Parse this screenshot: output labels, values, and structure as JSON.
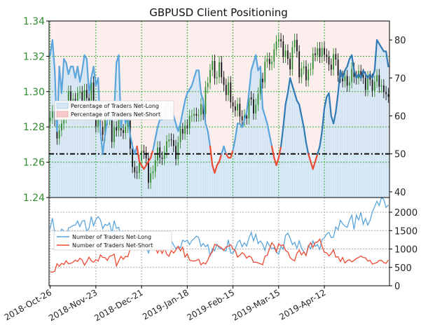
{
  "chart_data": {
    "type": "line",
    "title": "GBPUSD Client Positioning",
    "date_labels": [
      "2018-Oct-26",
      "2018-Nov-23",
      "2018-Dec-21",
      "2019-Jan-18",
      "2019-Feb-15",
      "2019-Mar-15",
      "2019-Apr-12"
    ],
    "price_axis": {
      "ticks": [
        "1.24",
        "1.26",
        "1.28",
        "1.30",
        "1.32",
        "1.34"
      ],
      "ylim": [
        1.24,
        1.34
      ],
      "color": "#2e8b2e"
    },
    "pct_axis": {
      "ticks": [
        "40",
        "50",
        "60",
        "70",
        "80"
      ],
      "ylim": [
        38.5,
        85
      ],
      "threshold": 50
    },
    "count_axis": {
      "ticks": [
        "0",
        "500",
        "1000",
        "1500",
        "2000"
      ],
      "ylim": [
        0,
        2400
      ]
    },
    "legend_top": [
      "Percentage of Traders Net-Long",
      "Percentage of Traders Net-Short"
    ],
    "legend_bottom": [
      "Number of Traders Net-Long",
      "Number of Traders Net-Short"
    ],
    "colors": {
      "long": "#2f7ab5",
      "short": "#ee4b33",
      "long_light": "#5aa5dc",
      "candle_up": "#2e8b2e",
      "candle_down": "#111111",
      "grid": "#3aa83a"
    },
    "pct_long_series": [
      76,
      80,
      72,
      56,
      73,
      66,
      75,
      74,
      71,
      73,
      73,
      70,
      73,
      69,
      72,
      76,
      75,
      66,
      70,
      73,
      68,
      70,
      56,
      50,
      55,
      59,
      62,
      59,
      61,
      74,
      76,
      57,
      62,
      58,
      60,
      55,
      52,
      50,
      52,
      48,
      47,
      46,
      47,
      48,
      49,
      51,
      54,
      57,
      59,
      59,
      60,
      63,
      63,
      62,
      60,
      58,
      56,
      58,
      61,
      64,
      66,
      67,
      68,
      70,
      72,
      72,
      66,
      64,
      58,
      56,
      52,
      47,
      45,
      47,
      48,
      50,
      52,
      50,
      49,
      49,
      51,
      54,
      58,
      58,
      57,
      59,
      61,
      66,
      72,
      74,
      76,
      72,
      73,
      62,
      60,
      58,
      55,
      52,
      49,
      47,
      49,
      52,
      57,
      63,
      66,
      70,
      68,
      66,
      64,
      63,
      60,
      57,
      53,
      50,
      48,
      46,
      48,
      50,
      52,
      56,
      62,
      65,
      66,
      60,
      58,
      61,
      66,
      72,
      70,
      72,
      73,
      75,
      76,
      72,
      70,
      71,
      70,
      72,
      71,
      70,
      71,
      70,
      72,
      80,
      79,
      78,
      77,
      77,
      73
    ],
    "close_series": [
      1.2852,
      1.2889,
      1.2839,
      1.2734,
      1.278,
      1.2819,
      1.2855,
      1.2903,
      1.3,
      1.2874,
      1.2958,
      1.2934,
      1.2993,
      1.2998,
      1.2933,
      1.3009,
      1.2963,
      1.2929,
      1.3052,
      1.2917,
      1.2803,
      1.2873,
      1.28,
      1.2755,
      1.2857,
      1.2845,
      1.2848,
      1.2715,
      1.2798,
      1.278,
      1.2863,
      1.2781,
      1.2766,
      1.28,
      1.2835,
      1.2677,
      1.2573,
      1.2544,
      1.254,
      1.2608,
      1.2664,
      1.2654,
      1.2621,
      1.2484,
      1.2538,
      1.2547,
      1.2611,
      1.2684,
      1.2626,
      1.2619,
      1.2657,
      1.2718,
      1.2729,
      1.2725,
      1.2692,
      1.2617,
      1.2713,
      1.2788,
      1.2762,
      1.2807,
      1.2792,
      1.2863,
      1.2863,
      1.2874,
      1.2864,
      1.2867,
      1.2929,
      1.2874,
      1.3025,
      1.3049,
      1.3122,
      1.3174,
      1.3075,
      1.3082,
      1.3166,
      1.3082,
      1.3038,
      1.2981,
      1.3052,
      1.294,
      1.2916,
      1.2893,
      1.2931,
      1.286,
      1.2837,
      1.2866,
      1.2848,
      1.2967,
      1.2956,
      1.2876,
      1.2925,
      1.2988,
      1.3073,
      1.3053,
      1.3169,
      1.3186,
      1.3156,
      1.3169,
      1.3239,
      1.3284,
      1.3297,
      1.3285,
      1.3197,
      1.3233,
      1.3186,
      1.3126,
      1.3252,
      1.3293,
      1.3228,
      1.3082,
      1.3132,
      1.3143,
      1.3064,
      1.3125,
      1.3128,
      1.3216,
      1.3207,
      1.3246,
      1.3197,
      1.3247,
      1.3209,
      1.3197,
      1.3153,
      1.3125,
      1.3212,
      1.3182,
      1.3091,
      1.3084,
      1.3059,
      1.3088,
      1.3034,
      1.3053,
      1.3129,
      1.3083,
      1.3075,
      1.3117,
      1.3094,
      1.3079,
      1.3009,
      1.3082,
      1.3067,
      1.3005,
      1.3056,
      1.3093,
      1.3028,
      1.3035,
      1.2997,
      1.2986,
      1.2971
    ],
    "net_long_series": [
      1550,
      1840,
      1440,
      1230,
      1340,
      1540,
      1490,
      1250,
      1570,
      1600,
      1640,
      1650,
      1760,
      1610,
      1760,
      1780,
      1480,
      1570,
      1880,
      1630,
      1800,
      1880,
      1790,
      1550,
      1670,
      1640,
      1710,
      1420,
      1770,
      1560,
      1590,
      1330,
      1300,
      1290,
      1170,
      1250,
      1120,
      1230,
      1140,
      1140,
      1010,
      1020,
      1070,
      890,
      1070,
      1160,
      1080,
      1050,
      1050,
      1120,
      1220,
      1290,
      1300,
      1220,
      1110,
      1010,
      1070,
      1030,
      1240,
      1200,
      1240,
      1120,
      1230,
      1280,
      1350,
      1310,
      1070,
      1150,
      1060,
      1120,
      810,
      1010,
      950,
      1130,
      1020,
      1010,
      960,
      950,
      1250,
      890,
      890,
      1000,
      1180,
      1240,
      1060,
      1170,
      1080,
      1300,
      1450,
      1220,
      1400,
      1150,
      1220,
      1130,
      960,
      1200,
      1090,
      1010,
      1030,
      920,
      860,
      1070,
      1000,
      1370,
      1430,
      1300,
      1120,
      1180,
      1020,
      1220,
      1030,
      930,
      820,
      1100,
      1000,
      1220,
      1070,
      1120,
      990,
      1260,
      1300,
      1410,
      1450,
      1310,
      1320,
      1600,
      1520,
      1780,
      1690,
      1620,
      1590,
      1780,
      1920,
      1530,
      1920,
      1790,
      1990,
      1670,
      1830,
      1650,
      1780,
      2000,
      2150,
      2300,
      2180,
      2400,
      2350,
      2130,
      2200
    ],
    "net_short_series": [
      380,
      370,
      400,
      600,
      530,
      610,
      580,
      680,
      600,
      610,
      640,
      700,
      660,
      750,
      700,
      560,
      660,
      780,
      680,
      640,
      710,
      670,
      840,
      770,
      770,
      690,
      800,
      820,
      860,
      540,
      680,
      800,
      720,
      800,
      790,
      1010,
      1090,
      1210,
      1010,
      1060,
      1060,
      1100,
      1220,
      990,
      1190,
      1090,
      1060,
      890,
      1010,
      880,
      1030,
      860,
      800,
      960,
      890,
      970,
      1070,
      950,
      1050,
      780,
      870,
      700,
      680,
      670,
      690,
      720,
      570,
      630,
      590,
      700,
      850,
      920,
      1130,
      1100,
      1070,
      1030,
      960,
      1060,
      1070,
      1120,
      1000,
      960,
      780,
      830,
      900,
      860,
      750,
      810,
      780,
      640,
      640,
      620,
      600,
      570,
      800,
      830,
      1010,
      1170,
      1100,
      920,
      1140,
      1090,
      1110,
      960,
      920,
      770,
      710,
      680,
      880,
      970,
      840,
      920,
      820,
      1060,
      1170,
      1040,
      1180,
      1190,
      1270,
      1070,
      910,
      900,
      810,
      880,
      980,
      780,
      790,
      660,
      770,
      620,
      680,
      710,
      650,
      690,
      740,
      770,
      810,
      770,
      760,
      670,
      690,
      590,
      610,
      630,
      690,
      690,
      630,
      610,
      700
    ]
  }
}
